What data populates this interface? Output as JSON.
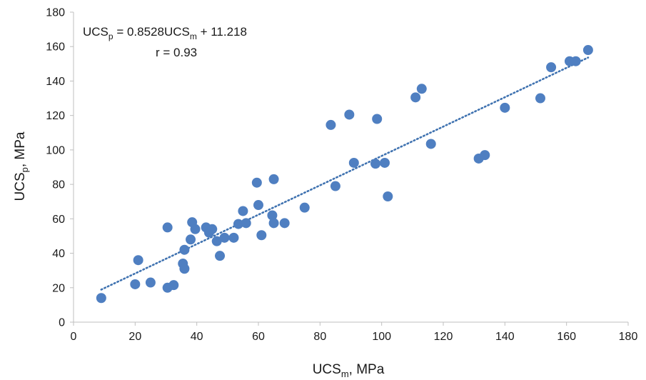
{
  "chart_data": {
    "type": "scatter",
    "xlim": [
      0,
      180
    ],
    "ylim": [
      0,
      180
    ],
    "x_ticks": [
      0,
      20,
      40,
      60,
      80,
      100,
      120,
      140,
      160,
      180
    ],
    "y_ticks": [
      0,
      20,
      40,
      60,
      80,
      100,
      120,
      140,
      160,
      180
    ],
    "xlabel": {
      "main": "UCS",
      "sub": "m",
      "rest": ", MPa"
    },
    "ylabel": {
      "main": "UCS",
      "sub": "p",
      "rest": ", MPa"
    },
    "grid": false,
    "marker_color": "#4f7fc1",
    "trendline": {
      "type": "linear",
      "slope": 0.8528,
      "intercept": 11.218,
      "x_range": [
        9,
        167
      ],
      "style": "dotted",
      "color": "#3f72b0",
      "equation": {
        "lhs_main": "UCS",
        "lhs_sub": "p",
        "mid": " = 0.8528UCS",
        "mid_sub": "m",
        "rhs": " + 11.218"
      },
      "r_label": "r = 0.93"
    },
    "points": [
      [
        9,
        14
      ],
      [
        20,
        22
      ],
      [
        21,
        36
      ],
      [
        25,
        23
      ],
      [
        30.5,
        55
      ],
      [
        30.5,
        20
      ],
      [
        32.5,
        21.5
      ],
      [
        35.5,
        34
      ],
      [
        36,
        31
      ],
      [
        36,
        42
      ],
      [
        38,
        48
      ],
      [
        38.5,
        58
      ],
      [
        39.5,
        54
      ],
      [
        43,
        55
      ],
      [
        44,
        52
      ],
      [
        45,
        54
      ],
      [
        46.5,
        47
      ],
      [
        47.5,
        38.5
      ],
      [
        49,
        49
      ],
      [
        52,
        49
      ],
      [
        53.5,
        57
      ],
      [
        55,
        64.5
      ],
      [
        56,
        57.5
      ],
      [
        59.5,
        81
      ],
      [
        60,
        68
      ],
      [
        61,
        50.5
      ],
      [
        64.5,
        62
      ],
      [
        65,
        83
      ],
      [
        65,
        57.5
      ],
      [
        68.5,
        57.5
      ],
      [
        75,
        66.5
      ],
      [
        83.5,
        114.5
      ],
      [
        85,
        79
      ],
      [
        89.5,
        120.5
      ],
      [
        91,
        92.5
      ],
      [
        98,
        92
      ],
      [
        98.5,
        118
      ],
      [
        101,
        92.5
      ],
      [
        102,
        73
      ],
      [
        111,
        130.5
      ],
      [
        113,
        135.5
      ],
      [
        116,
        103.5
      ],
      [
        131.5,
        95
      ],
      [
        133.5,
        97
      ],
      [
        140,
        124.5
      ],
      [
        151.5,
        130
      ],
      [
        155,
        148
      ],
      [
        161,
        151.5
      ],
      [
        163,
        151.5
      ],
      [
        167,
        158
      ]
    ]
  }
}
